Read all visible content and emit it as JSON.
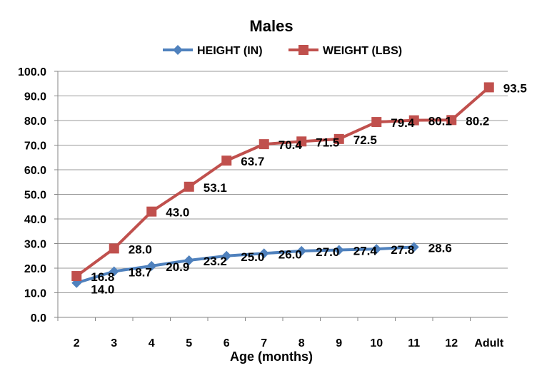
{
  "chart_data": {
    "type": "line",
    "title": "Males",
    "xlabel": "Age (months)",
    "ylabel": "",
    "ylim": [
      0,
      100
    ],
    "yticks": [
      "0.0",
      "10.0",
      "20.0",
      "30.0",
      "40.0",
      "50.0",
      "60.0",
      "70.0",
      "80.0",
      "90.0",
      "100.0"
    ],
    "grid": true,
    "legend_position": "top",
    "categories": [
      "2",
      "3",
      "4",
      "5",
      "6",
      "7",
      "8",
      "9",
      "10",
      "11",
      "12",
      "Adult"
    ],
    "series": [
      {
        "name": "HEIGHT (IN)",
        "color": "#4F81BD",
        "marker": "diamond",
        "values": [
          14.0,
          18.7,
          20.9,
          23.2,
          25.0,
          26.0,
          27.0,
          27.4,
          27.8,
          28.6,
          null,
          null
        ],
        "labels": [
          "14.0",
          "18.7",
          "20.9",
          "23.2",
          "25.0",
          "26.0",
          "27.0",
          "27.4",
          "27.8",
          "28.6",
          null,
          null
        ]
      },
      {
        "name": "WEIGHT (LBS)",
        "color": "#C0504D",
        "marker": "square",
        "values": [
          16.8,
          28.0,
          43.0,
          53.1,
          63.7,
          70.4,
          71.5,
          72.5,
          79.4,
          80.1,
          80.2,
          93.5
        ],
        "labels": [
          "16.8",
          "28.0",
          "43.0",
          "53.1",
          "63.7",
          "70.4",
          "71.5",
          "72.5",
          "79.4",
          "80.1",
          "80.2",
          "93.5"
        ]
      }
    ]
  }
}
